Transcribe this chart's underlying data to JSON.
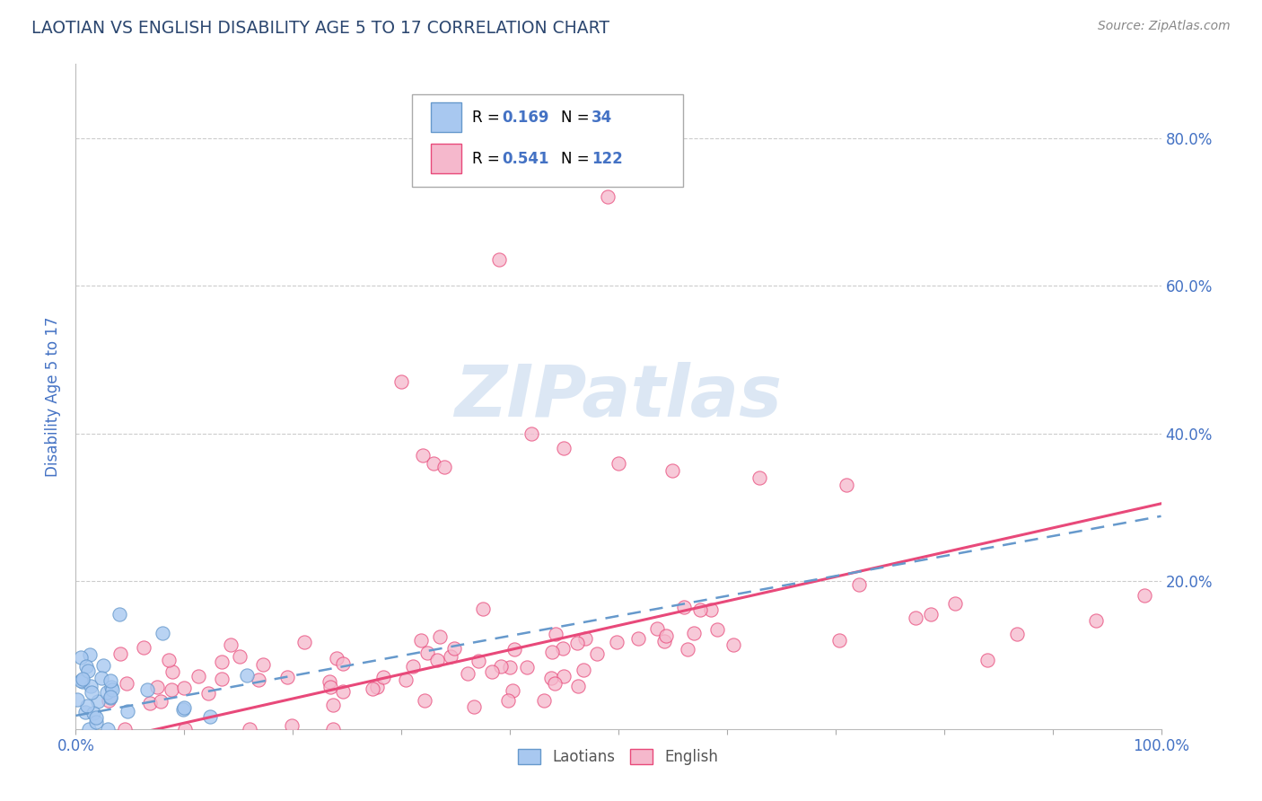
{
  "title": "LAOTIAN VS ENGLISH DISABILITY AGE 5 TO 17 CORRELATION CHART",
  "source": "Source: ZipAtlas.com",
  "ylabel": "Disability Age 5 to 17",
  "R_laotian": 0.169,
  "N_laotian": 34,
  "R_english": 0.541,
  "N_english": 122,
  "laotian_color": "#a8c8f0",
  "laotian_edge": "#6699cc",
  "english_color": "#f5b8cc",
  "english_edge": "#e8497a",
  "trend_laotian_color": "#6699cc",
  "trend_english_color": "#e8497a",
  "watermark_color": "#c5d8ee",
  "title_color": "#2c4770",
  "axis_label_color": "#4472c4",
  "grid_color": "#cccccc",
  "xlim": [
    0.0,
    1.0
  ],
  "ylim": [
    0.0,
    0.9
  ],
  "yticks": [
    0.0,
    0.2,
    0.4,
    0.6,
    0.8
  ],
  "ytick_labels": [
    "",
    "20.0%",
    "40.0%",
    "60.0%",
    "80.0%"
  ],
  "seed": 123
}
